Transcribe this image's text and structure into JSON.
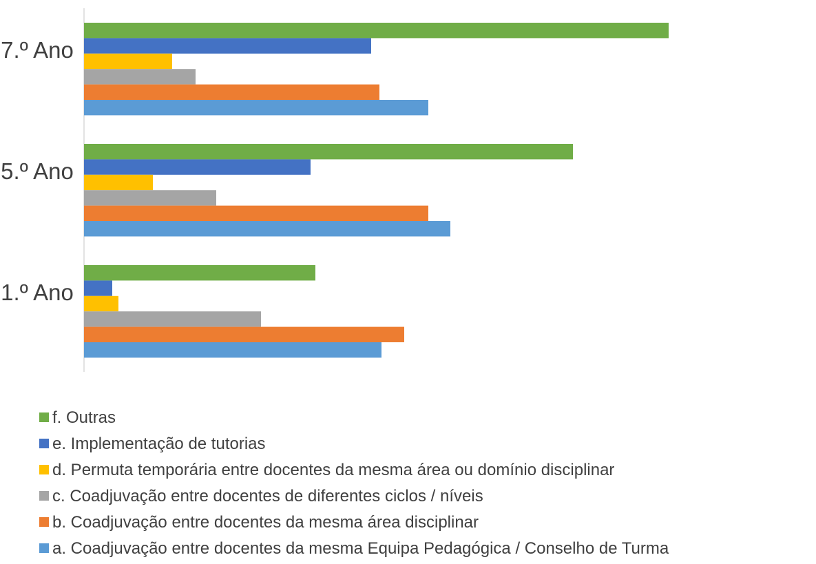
{
  "chart_data": {
    "type": "bar",
    "orientation": "horizontal",
    "categories": [
      "7.º Ano",
      "5.º Ano",
      "1.º Ano"
    ],
    "xlim": [
      0,
      100
    ],
    "series": [
      {
        "name": "f. Outras",
        "color": "#70ad47",
        "values": [
          84.9,
          71.0,
          33.6
        ]
      },
      {
        "name": "e. Implementação de tutorias",
        "color": "#4472c4",
        "values": [
          41.7,
          32.9,
          4.1
        ]
      },
      {
        "name": "d. Permuta temporária entre docentes da mesma área ou domínio disciplinar",
        "color": "#ffc000",
        "values": [
          12.8,
          10.0,
          5.0
        ]
      },
      {
        "name": "c. Coadjuvação entre docentes de diferentes ciclos / níveis",
        "color": "#a5a5a5",
        "values": [
          16.2,
          19.2,
          25.7
        ]
      },
      {
        "name": "b. Coadjuvação entre docentes da mesma área disciplinar",
        "color": "#ed7d31",
        "values": [
          42.9,
          50.0,
          46.5
        ]
      },
      {
        "name": "a. Coadjuvação entre docentes da mesma Equipa Pedagógica / Conselho de Turma",
        "color": "#5b9bd5",
        "values": [
          50.0,
          53.2,
          43.2
        ]
      }
    ]
  }
}
